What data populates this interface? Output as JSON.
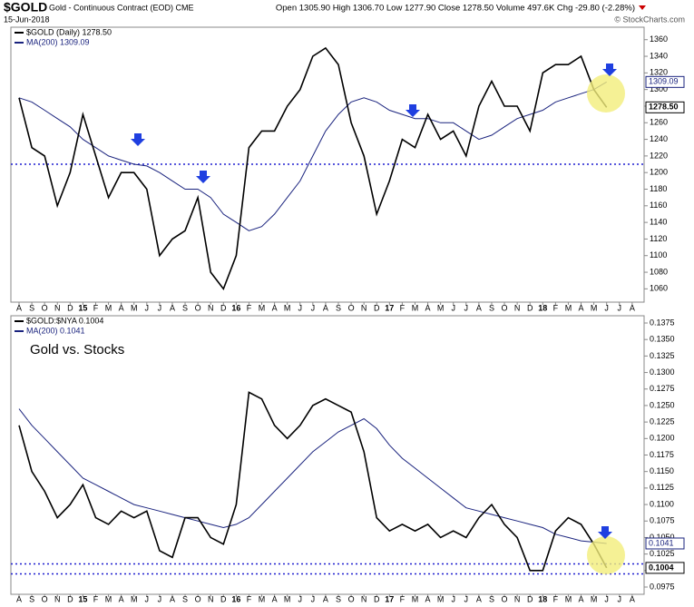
{
  "header": {
    "symbol": "$GOLD",
    "name": "Gold - Continuous Contract (EOD) CME",
    "date": "15-Jun-2018",
    "quote": "Open 1305.90 High 1306.70 Low 1277.90 Close 1278.50 Volume 497.6K Chg -29.80 (-2.28%)",
    "source": "© StockCharts.com"
  },
  "chart_data": [
    {
      "type": "line",
      "categories": [
        "A",
        "S",
        "O",
        "N",
        "D",
        "15",
        "F",
        "M",
        "A",
        "M",
        "J",
        "J",
        "A",
        "S",
        "O",
        "N",
        "D",
        "16",
        "F",
        "M",
        "A",
        "M",
        "J",
        "J",
        "A",
        "S",
        "O",
        "N",
        "D",
        "17",
        "F",
        "M",
        "A",
        "M",
        "J",
        "J",
        "A",
        "S",
        "O",
        "N",
        "D",
        "18",
        "F",
        "M",
        "A",
        "M",
        "J",
        "J",
        "A"
      ],
      "series": [
        {
          "name": "$GOLD (Daily) 1278.50",
          "color": "#000000",
          "values": [
            1290,
            1230,
            1220,
            1160,
            1200,
            1270,
            1220,
            1170,
            1200,
            1200,
            1180,
            1100,
            1120,
            1130,
            1170,
            1080,
            1060,
            1100,
            1230,
            1250,
            1250,
            1280,
            1300,
            1340,
            1350,
            1330,
            1260,
            1220,
            1150,
            1190,
            1240,
            1230,
            1270,
            1240,
            1250,
            1220,
            1280,
            1310,
            1280,
            1280,
            1250,
            1320,
            1330,
            1330,
            1340,
            1300,
            1278.5,
            null,
            null
          ]
        },
        {
          "name": "MA(200) 1309.09",
          "color": "#1a237e",
          "values": [
            1290,
            1285,
            1275,
            1265,
            1255,
            1240,
            1230,
            1220,
            1215,
            1210,
            1208,
            1200,
            1190,
            1180,
            1180,
            1170,
            1150,
            1140,
            1130,
            1135,
            1150,
            1170,
            1190,
            1220,
            1250,
            1270,
            1285,
            1290,
            1285,
            1275,
            1270,
            1265,
            1265,
            1260,
            1260,
            1250,
            1240,
            1245,
            1255,
            1265,
            1270,
            1275,
            1285,
            1290,
            1295,
            1300,
            1309.09,
            null,
            null
          ]
        }
      ],
      "ylim": [
        1044,
        1375
      ],
      "yticks": [
        1060,
        1080,
        1100,
        1120,
        1140,
        1160,
        1180,
        1200,
        1220,
        1240,
        1260,
        1280,
        1300,
        1320,
        1340,
        1360
      ],
      "reference_lines": [
        1210
      ],
      "reference_color": "#1f1fd0",
      "end_labels": [
        {
          "value": 1309.09,
          "label": "1309.09"
        },
        {
          "value": 1278.5,
          "label": "1278.50"
        }
      ]
    },
    {
      "type": "line",
      "annotation": "Gold vs. Stocks",
      "categories": [
        "A",
        "S",
        "O",
        "N",
        "D",
        "15",
        "F",
        "M",
        "A",
        "M",
        "J",
        "J",
        "A",
        "S",
        "O",
        "N",
        "D",
        "16",
        "F",
        "M",
        "A",
        "M",
        "J",
        "J",
        "A",
        "S",
        "O",
        "N",
        "D",
        "17",
        "F",
        "M",
        "A",
        "M",
        "J",
        "J",
        "A",
        "S",
        "O",
        "N",
        "D",
        "18",
        "F",
        "M",
        "A",
        "M",
        "J",
        "J",
        "A"
      ],
      "series": [
        {
          "name": "$GOLD:$NYA 0.1004",
          "color": "#000000",
          "values": [
            0.122,
            0.115,
            0.112,
            0.108,
            0.11,
            0.113,
            0.108,
            0.107,
            0.109,
            0.108,
            0.109,
            0.103,
            0.102,
            0.108,
            0.108,
            0.105,
            0.104,
            0.11,
            0.127,
            0.126,
            0.122,
            0.12,
            0.122,
            0.125,
            0.126,
            0.125,
            0.124,
            0.118,
            0.108,
            0.106,
            0.107,
            0.106,
            0.107,
            0.105,
            0.106,
            0.105,
            0.108,
            0.11,
            0.107,
            0.105,
            0.1,
            0.1,
            0.106,
            0.108,
            0.107,
            0.104,
            0.1004,
            null,
            null
          ]
        },
        {
          "name": "MA(200) 0.1041",
          "color": "#1a237e",
          "values": [
            0.1245,
            0.122,
            0.12,
            0.118,
            0.116,
            0.114,
            0.113,
            0.112,
            0.111,
            0.11,
            0.1095,
            0.109,
            0.1085,
            0.108,
            0.1075,
            0.107,
            0.1065,
            0.107,
            0.108,
            0.11,
            0.112,
            0.114,
            0.116,
            0.118,
            0.1195,
            0.121,
            0.122,
            0.123,
            0.1215,
            0.119,
            0.117,
            0.1155,
            0.114,
            0.1125,
            0.111,
            0.1095,
            0.109,
            0.1085,
            0.108,
            0.1075,
            0.107,
            0.1065,
            0.1055,
            0.105,
            0.1045,
            0.1043,
            0.1041,
            null,
            null
          ]
        }
      ],
      "ylim": [
        0.0964,
        0.1386
      ],
      "yticks": [
        0.0975,
        {
          "value": 0.1,
          "label": "0.1000"
        },
        0.1025,
        {
          "value": 0.105,
          "label": "0.1050"
        },
        0.1075,
        {
          "value": 0.11,
          "label": "0.1100"
        },
        0.1125,
        {
          "value": 0.115,
          "label": "0.1150"
        },
        0.1175,
        {
          "value": 0.12,
          "label": "0.1200"
        },
        0.1225,
        {
          "value": 0.125,
          "label": "0.1250"
        },
        0.1275,
        {
          "value": 0.13,
          "label": "0.1300"
        },
        0.1325,
        {
          "value": 0.135,
          "label": "0.1350"
        },
        0.1375
      ],
      "reference_lines": [
        0.101,
        0.0995
      ],
      "reference_color": "#1f1fd0",
      "end_labels": [
        {
          "value": 0.1041,
          "label": "0.1041"
        },
        {
          "value": 0.1004,
          "label": "0.1004"
        }
      ]
    }
  ]
}
